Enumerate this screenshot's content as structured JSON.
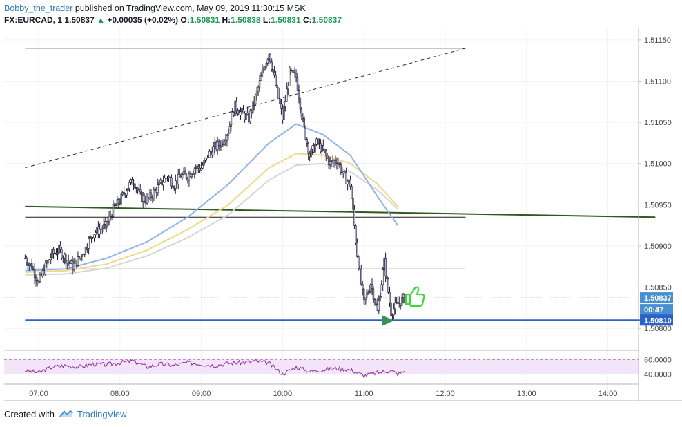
{
  "header": {
    "author": "Bobby_the_trader",
    "published": "published on TradingView.com, May 09, 2019 11:30:15 MSK",
    "symbol": "FX:EURCAD, 1",
    "price": "1.50837",
    "change_arrow": "▲",
    "change": "+0.00035 (+0.02%)",
    "o_label": "O:",
    "o": "1.50831",
    "h_label": "H:",
    "h": "1.50838",
    "l_label": "L:",
    "l": "1.50831",
    "c_label": "C:",
    "c": "1.50837"
  },
  "footer": {
    "created_with": "Created with",
    "brand": "TradingView"
  },
  "colors": {
    "candle_body": "#b8a8e0",
    "candle_border": "#1c1c2e",
    "ema_blue": "#8fb4e8",
    "ema_yellow": "#f0d88a",
    "ema_gray": "#d5d5d5",
    "trend_green": "#2e5a1c",
    "support_blue": "#2962c8",
    "osc_line": "#8a2aa0",
    "osc_fill": "#f3e4f7",
    "arrow_green": "#3d8c5c",
    "thumb_green": "#3ad83a"
  },
  "icons": [
    "green-arrow-icon",
    "thumbs-up-icon",
    "tradingview-logo-icon"
  ],
  "chart_data": {
    "type": "candlestick",
    "timeframe": "1",
    "x_ticks": [
      "07:00",
      "08:00",
      "09:00",
      "10:00",
      "11:00",
      "12:00",
      "13:00",
      "14:00"
    ],
    "y_ticks": [
      "1.51150",
      "1.51100",
      "1.51050",
      "1.51000",
      "1.50950",
      "1.50900",
      "1.50850",
      "1.50800"
    ],
    "ylim": [
      1.50775,
      1.51165
    ],
    "price_labels": {
      "last": "1.50837",
      "countdown": "00:47",
      "support": "1.50810"
    },
    "oscillator": {
      "levels": [
        "60.0000",
        "40.0000"
      ],
      "ylim": [
        30,
        70
      ]
    },
    "price_path": [
      [
        "06:50",
        1.50885
      ],
      [
        "06:55",
        1.50875
      ],
      [
        "07:00",
        1.50855
      ],
      [
        "07:05",
        1.50875
      ],
      [
        "07:10",
        1.5089
      ],
      [
        "07:15",
        1.50895
      ],
      [
        "07:20",
        1.50885
      ],
      [
        "07:25",
        1.50875
      ],
      [
        "07:30",
        1.50885
      ],
      [
        "07:35",
        1.509
      ],
      [
        "07:40",
        1.50915
      ],
      [
        "07:45",
        1.5092
      ],
      [
        "07:50",
        1.50925
      ],
      [
        "07:55",
        1.50945
      ],
      [
        "08:00",
        1.50955
      ],
      [
        "08:05",
        1.5097
      ],
      [
        "08:10",
        1.5098
      ],
      [
        "08:15",
        1.5096
      ],
      [
        "08:20",
        1.50955
      ],
      [
        "08:25",
        1.50965
      ],
      [
        "08:30",
        1.50975
      ],
      [
        "08:35",
        1.50985
      ],
      [
        "08:40",
        1.50975
      ],
      [
        "08:45",
        1.50985
      ],
      [
        "08:50",
        1.50985
      ],
      [
        "08:55",
        1.50995
      ],
      [
        "09:00",
        1.50995
      ],
      [
        "09:05",
        1.5101
      ],
      [
        "09:10",
        1.5102
      ],
      [
        "09:15",
        1.51025
      ],
      [
        "09:20",
        1.5104
      ],
      [
        "09:25",
        1.5107
      ],
      [
        "09:30",
        1.5106
      ],
      [
        "09:35",
        1.51055
      ],
      [
        "09:40",
        1.5108
      ],
      [
        "09:45",
        1.5111
      ],
      [
        "09:50",
        1.51135
      ],
      [
        "09:55",
        1.51095
      ],
      [
        "10:00",
        1.51055
      ],
      [
        "10:05",
        1.5111
      ],
      [
        "10:10",
        1.51105
      ],
      [
        "10:15",
        1.5105
      ],
      [
        "10:20",
        1.5101
      ],
      [
        "10:25",
        1.51025
      ],
      [
        "10:30",
        1.51015
      ],
      [
        "10:35",
        1.51
      ],
      [
        "10:40",
        1.51005
      ],
      [
        "10:45",
        1.50985
      ],
      [
        "10:50",
        1.50975
      ],
      [
        "10:55",
        1.5089
      ],
      [
        "11:00",
        1.5083
      ],
      [
        "11:05",
        1.50855
      ],
      [
        "11:10",
        1.5082
      ],
      [
        "11:15",
        1.5088
      ],
      [
        "11:20",
        1.5082
      ],
      [
        "11:25",
        1.5083
      ],
      [
        "11:30",
        1.50837
      ]
    ],
    "ema_blue": [
      [
        "06:50",
        1.5087
      ],
      [
        "07:20",
        1.50872
      ],
      [
        "07:50",
        1.50885
      ],
      [
        "08:20",
        1.50905
      ],
      [
        "08:50",
        1.50935
      ],
      [
        "09:20",
        1.50975
      ],
      [
        "09:50",
        1.51025
      ],
      [
        "10:10",
        1.51048
      ],
      [
        "10:30",
        1.51035
      ],
      [
        "10:50",
        1.5101
      ],
      [
        "11:10",
        1.5096
      ],
      [
        "11:25",
        1.50925
      ]
    ],
    "ema_yellow": [
      [
        "06:50",
        1.50868
      ],
      [
        "07:20",
        1.5087
      ],
      [
        "07:50",
        1.50878
      ],
      [
        "08:20",
        1.50895
      ],
      [
        "08:50",
        1.5092
      ],
      [
        "09:20",
        1.5095
      ],
      [
        "09:50",
        1.50995
      ],
      [
        "10:10",
        1.51012
      ],
      [
        "10:30",
        1.5101
      ],
      [
        "10:50",
        1.51
      ],
      [
        "11:10",
        1.50975
      ],
      [
        "11:25",
        1.50948
      ]
    ],
    "ema_gray": [
      [
        "06:50",
        1.50865
      ],
      [
        "07:20",
        1.50866
      ],
      [
        "07:50",
        1.50873
      ],
      [
        "08:20",
        1.50888
      ],
      [
        "08:50",
        1.5091
      ],
      [
        "09:20",
        1.50938
      ],
      [
        "09:50",
        1.5098
      ],
      [
        "10:10",
        1.50998
      ],
      [
        "10:30",
        1.51
      ],
      [
        "10:50",
        1.5099
      ],
      [
        "11:10",
        1.50968
      ],
      [
        "11:25",
        1.50945
      ]
    ],
    "drawings": {
      "dashed_trendline": [
        [
          "06:50",
          1.50995
        ],
        [
          "12:15",
          1.5114
        ]
      ],
      "resistance_top": [
        [
          "06:50",
          1.5114
        ],
        [
          "12:15",
          1.5114
        ]
      ],
      "green_trendline": [
        [
          "06:50",
          1.50948
        ],
        [
          "14:35",
          1.50935
        ]
      ],
      "level_1": [
        [
          "06:50",
          1.50935
        ],
        [
          "12:15",
          1.50935
        ]
      ],
      "level_2": [
        [
          "06:50",
          1.50872
        ],
        [
          "12:15",
          1.50872
        ]
      ],
      "support": [
        [
          "06:50",
          1.5081
        ],
        [
          "14:35",
          1.5081
        ]
      ]
    },
    "oscillator_series": [
      [
        "06:50",
        45
      ],
      [
        "07:00",
        42
      ],
      [
        "07:10",
        50
      ],
      [
        "07:20",
        52
      ],
      [
        "07:30",
        50
      ],
      [
        "07:40",
        54
      ],
      [
        "07:50",
        53
      ],
      [
        "08:00",
        56
      ],
      [
        "08:10",
        58
      ],
      [
        "08:20",
        50
      ],
      [
        "08:30",
        54
      ],
      [
        "08:40",
        52
      ],
      [
        "08:50",
        56
      ],
      [
        "09:00",
        54
      ],
      [
        "09:10",
        52
      ],
      [
        "09:20",
        55
      ],
      [
        "09:30",
        56
      ],
      [
        "09:40",
        58
      ],
      [
        "09:50",
        55
      ],
      [
        "10:00",
        40
      ],
      [
        "10:10",
        50
      ],
      [
        "10:20",
        44
      ],
      [
        "10:30",
        46
      ],
      [
        "10:40",
        48
      ],
      [
        "10:50",
        46
      ],
      [
        "11:00",
        38
      ],
      [
        "11:10",
        42
      ],
      [
        "11:20",
        45
      ],
      [
        "11:25",
        40
      ],
      [
        "11:30",
        44
      ]
    ]
  }
}
